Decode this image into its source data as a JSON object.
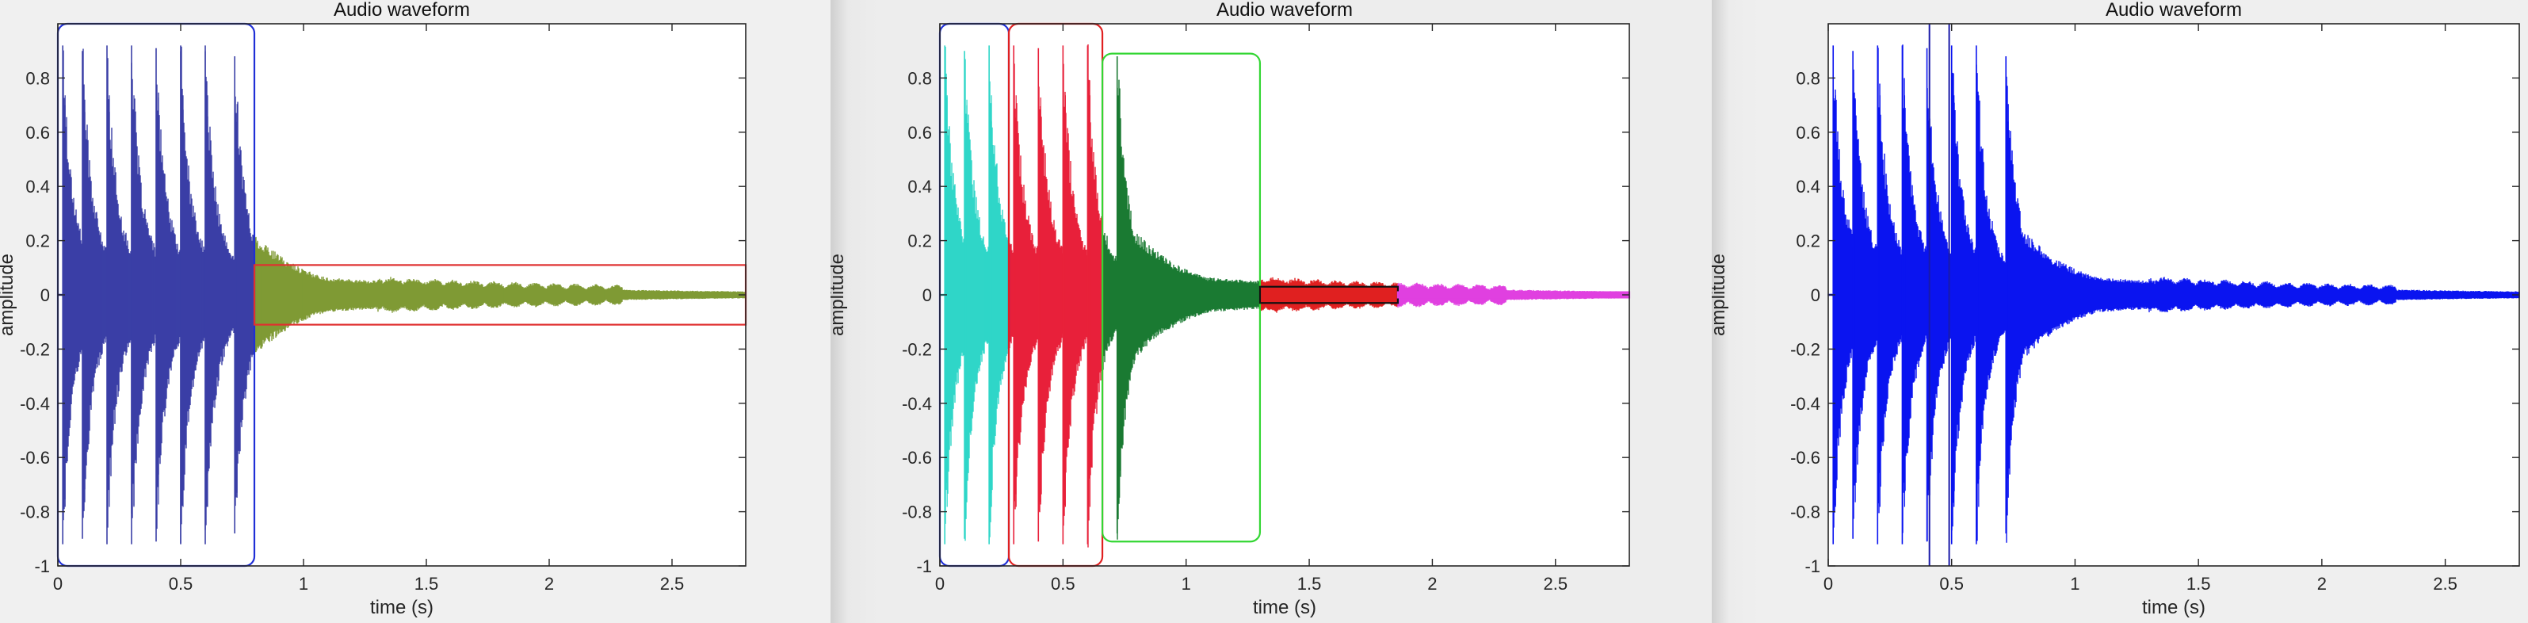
{
  "chart_data": [
    {
      "type": "line",
      "title": "Audio waveform",
      "xlabel": "time (s)",
      "ylabel": "amplitude",
      "xlim": [
        0,
        2.8
      ],
      "ylim": [
        -1,
        1
      ],
      "xticks": [
        0,
        0.5,
        1,
        1.5,
        2,
        2.5
      ],
      "xtick_labels": [
        "0",
        "0.5",
        "1",
        "1.5",
        "2",
        "2.5"
      ],
      "yticks": [
        -1,
        -0.8,
        -0.6,
        -0.4,
        -0.2,
        0,
        0.2,
        0.4,
        0.6,
        0.8
      ],
      "ytick_labels": [
        "-1",
        "-0.8",
        "-0.6",
        "-0.4",
        "-0.2",
        "0",
        "0.2",
        "0.4",
        "0.6",
        "0.8"
      ],
      "grid": false,
      "onsets": [
        0.02,
        0.1,
        0.2,
        0.3,
        0.4,
        0.5,
        0.6,
        0.72
      ],
      "peaks": [
        0.92,
        0.9,
        0.92,
        0.92,
        0.91,
        0.92,
        0.92,
        0.88
      ],
      "segments": [
        {
          "x": [
            0,
            0.8
          ],
          "color": "#3a3fa6"
        },
        {
          "x": [
            0.8,
            2.8
          ],
          "color": "#7f9a35"
        }
      ],
      "boxes": [
        {
          "x": [
            0,
            0.8
          ],
          "y": [
            -1,
            1
          ],
          "color": "#1f2fd6",
          "rounded": true
        },
        {
          "x": [
            0.8,
            2.8
          ],
          "y": [
            -0.11,
            0.11
          ],
          "color": "#e03030",
          "rounded": false
        }
      ],
      "vlines": []
    },
    {
      "type": "line",
      "title": "Audio waveform",
      "xlabel": "time (s)",
      "ylabel": "amplitude",
      "xlim": [
        0,
        2.8
      ],
      "ylim": [
        -1,
        1
      ],
      "xticks": [
        0,
        0.5,
        1,
        1.5,
        2,
        2.5
      ],
      "xtick_labels": [
        "0",
        "0.5",
        "1",
        "1.5",
        "2",
        "2.5"
      ],
      "yticks": [
        -1,
        -0.8,
        -0.6,
        -0.4,
        -0.2,
        0,
        0.2,
        0.4,
        0.6,
        0.8
      ],
      "ytick_labels": [
        "-1",
        "-0.8",
        "-0.6",
        "-0.4",
        "-0.2",
        "0",
        "0.2",
        "0.4",
        "0.6",
        "0.8"
      ],
      "grid": false,
      "onsets": [
        0.02,
        0.1,
        0.2,
        0.3,
        0.4,
        0.5,
        0.6,
        0.72
      ],
      "peaks": [
        0.92,
        0.9,
        0.92,
        0.92,
        0.91,
        0.92,
        0.92,
        0.88
      ],
      "segments": [
        {
          "x": [
            0,
            0.28
          ],
          "color": "#2fd6c8"
        },
        {
          "x": [
            0.28,
            0.66
          ],
          "color": "#e8213a"
        },
        {
          "x": [
            0.66,
            1.3
          ],
          "color": "#1b7a32"
        },
        {
          "x": [
            1.3,
            1.86
          ],
          "color": "#e02020"
        },
        {
          "x": [
            1.86,
            2.8
          ],
          "color": "#e040e0"
        }
      ],
      "boxes": [
        {
          "x": [
            0,
            0.28
          ],
          "y": [
            -1,
            1
          ],
          "color": "#1f2fd6",
          "rounded": true
        },
        {
          "x": [
            0.28,
            0.66
          ],
          "y": [
            -1,
            1
          ],
          "color": "#e02020",
          "rounded": true
        },
        {
          "x": [
            0.66,
            1.3
          ],
          "y": [
            -0.91,
            0.89
          ],
          "color": "#33d633",
          "rounded": true
        },
        {
          "x": [
            1.3,
            1.86
          ],
          "y": [
            -0.03,
            0.03
          ],
          "color": "#111111",
          "rounded": false
        },
        {
          "x": [
            1.86,
            2.8
          ],
          "y": [
            -0.01,
            0.01
          ],
          "color": "#e040e0",
          "rounded": false
        }
      ],
      "vlines": []
    },
    {
      "type": "line",
      "title": "Audio waveform",
      "xlabel": "time (s)",
      "ylabel": "amplitude",
      "xlim": [
        0,
        2.8
      ],
      "ylim": [
        -1,
        1
      ],
      "xticks": [
        0,
        0.5,
        1,
        1.5,
        2,
        2.5
      ],
      "xtick_labels": [
        "0",
        "0.5",
        "1",
        "1.5",
        "2",
        "2.5"
      ],
      "yticks": [
        -1,
        -0.8,
        -0.6,
        -0.4,
        -0.2,
        0,
        0.2,
        0.4,
        0.6,
        0.8
      ],
      "ytick_labels": [
        "-1",
        "-0.8",
        "-0.6",
        "-0.4",
        "-0.2",
        "0",
        "0.2",
        "0.4",
        "0.6",
        "0.8"
      ],
      "grid": false,
      "onsets": [
        0.02,
        0.1,
        0.2,
        0.3,
        0.4,
        0.5,
        0.6,
        0.72
      ],
      "peaks": [
        0.92,
        0.9,
        0.92,
        0.92,
        0.91,
        0.92,
        0.92,
        0.88
      ],
      "segments": [
        {
          "x": [
            0,
            2.8
          ],
          "color": "#0a14f0"
        }
      ],
      "boxes": [],
      "vlines": [
        0.41,
        0.49
      ]
    }
  ]
}
